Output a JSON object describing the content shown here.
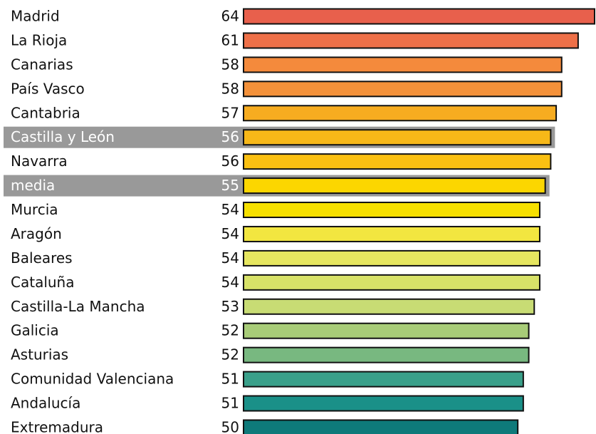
{
  "chart_data": {
    "type": "hbar",
    "categories": [
      "Madrid",
      "La Rioja",
      "Canarias",
      "País Vasco",
      "Cantabria",
      "Castilla y León",
      "Navarra",
      "media",
      "Murcia",
      "Aragón",
      "Baleares",
      "Cataluña",
      "Castilla-La Mancha",
      "Galicia",
      "Asturias",
      "Comunidad Valenciana",
      "Andalucía",
      "Extremadura"
    ],
    "values": [
      64,
      61,
      58,
      58,
      57,
      56,
      56,
      55,
      54,
      54,
      54,
      54,
      53,
      52,
      52,
      51,
      51,
      50
    ],
    "colors": [
      "#e8604c",
      "#ee7048",
      "#f48a3c",
      "#f4913a",
      "#f7ac20",
      "#f7b818",
      "#fbc012",
      "#fcd600",
      "#f6e000",
      "#f2e640",
      "#e6e660",
      "#d8e268",
      "#c8dc74",
      "#a8cc78",
      "#78b880",
      "#3aa08a",
      "#1a9088",
      "#0e7a7a"
    ],
    "highlighted": [
      5,
      7
    ],
    "xlim": [
      0,
      64
    ]
  }
}
